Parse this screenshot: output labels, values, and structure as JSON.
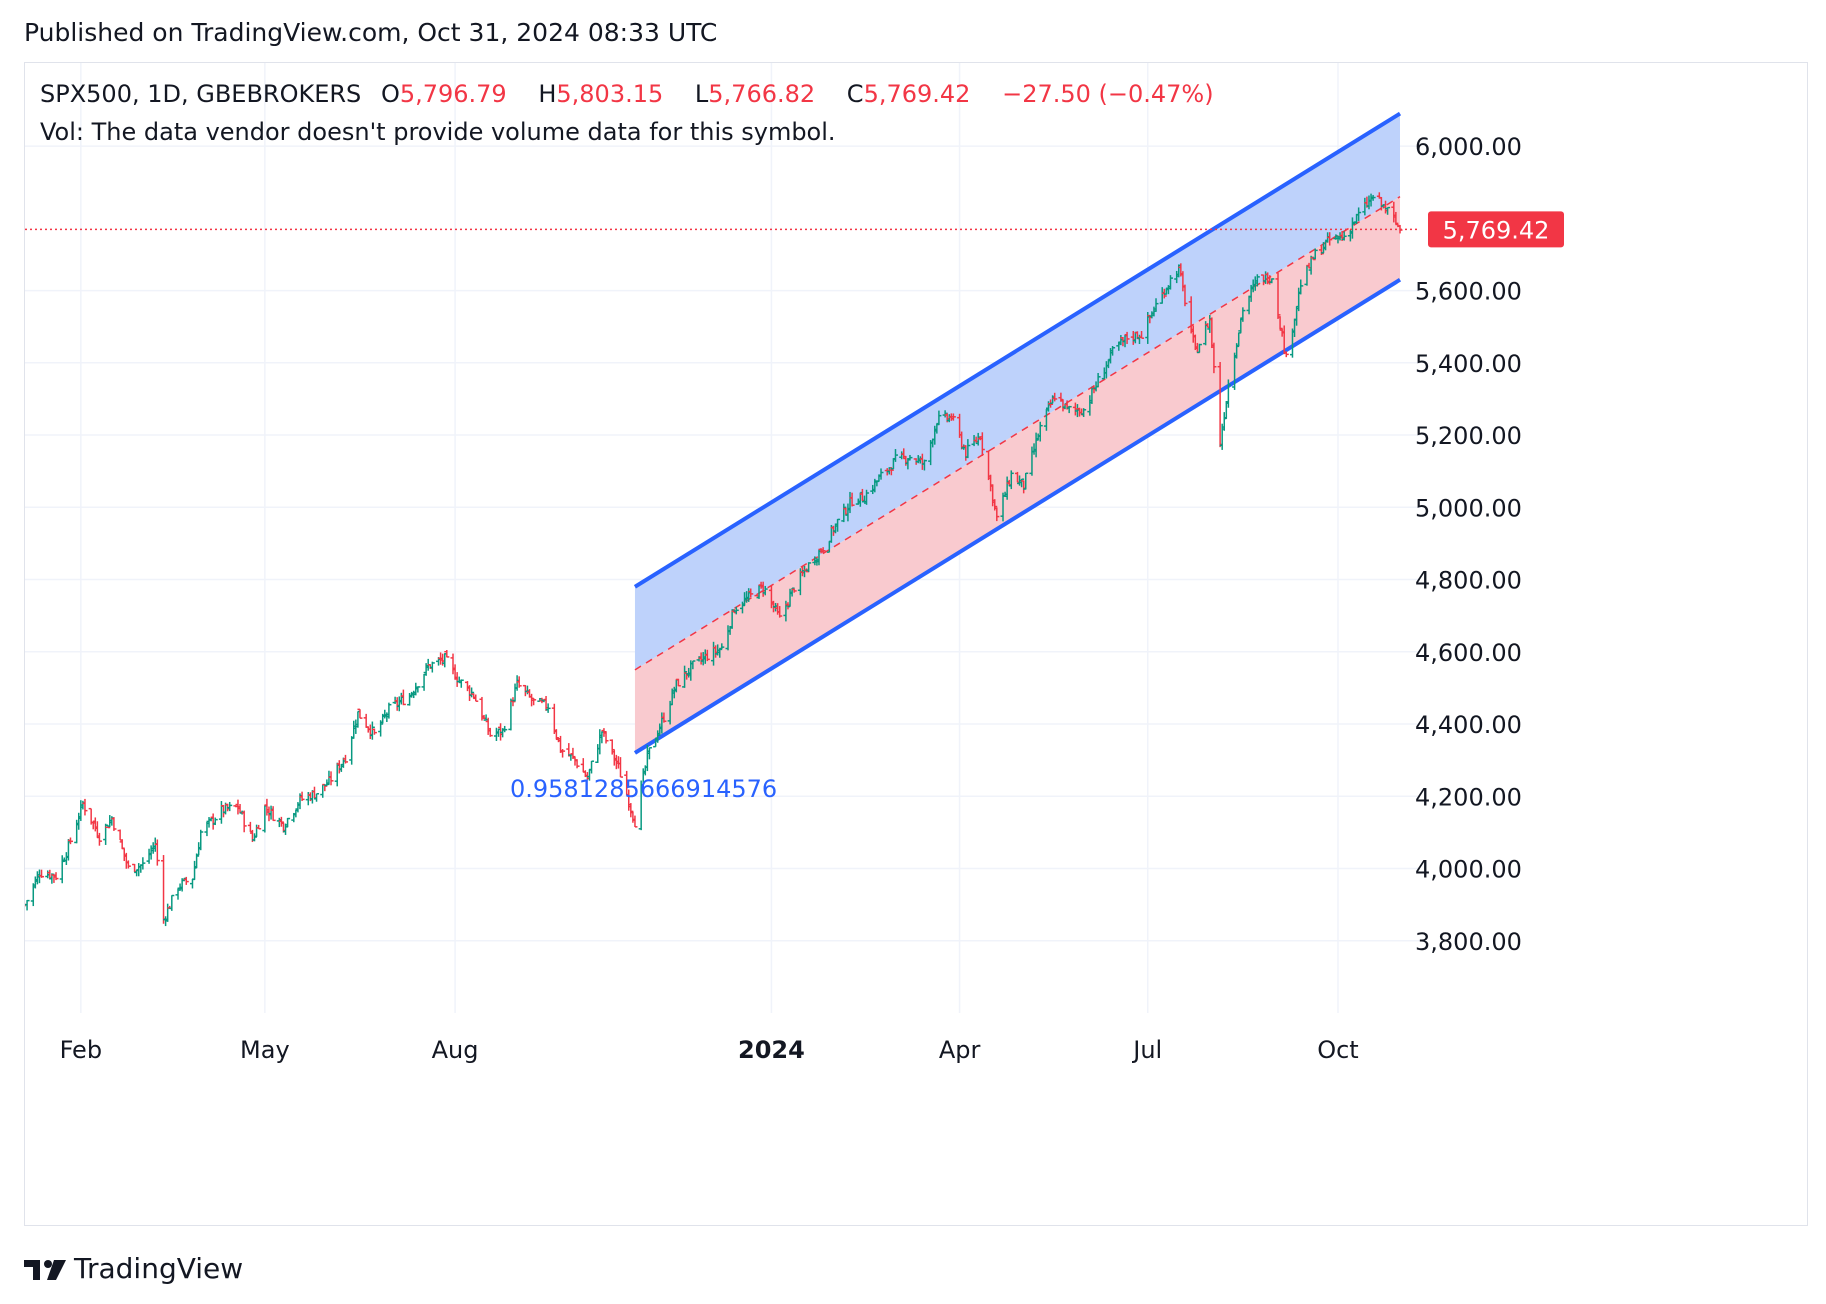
{
  "header": {
    "published": "Published on TradingView.com, Oct 31, 2024 08:33 UTC"
  },
  "legend": {
    "symbol": "SPX500, 1D, GBEBROKERS",
    "o_label": "O",
    "o_value": "5,796.79",
    "h_label": "H",
    "h_value": "5,803.15",
    "l_label": "L",
    "l_value": "5,766.82",
    "c_label": "C",
    "c_value": "5,769.42",
    "change": "−27.50 (−0.47%)",
    "vol_note": "Vol: The data vendor doesn't provide volume data for this symbol."
  },
  "footer": {
    "brand": "TradingView"
  },
  "colors": {
    "up": "#089981",
    "down": "#f23645",
    "channel_line": "#2962ff",
    "upper_fill": "#bbd0fb",
    "lower_fill": "#f9c7cc",
    "mid_line": "#f23645",
    "price_label_bg": "#f23645",
    "annotation": "#2962ff",
    "grid": "#f0f3fa"
  },
  "chart_data": {
    "type": "candlestick",
    "symbol": "SPX500",
    "interval": "1D",
    "source": "GBEBROKERS",
    "y_ticks": [
      "3,800.00",
      "4,000.00",
      "4,200.00",
      "4,400.00",
      "4,600.00",
      "4,800.00",
      "5,000.00",
      "5,200.00",
      "5,400.00",
      "5,600.00",
      "6,000.00"
    ],
    "y_tick_values": [
      3800,
      4000,
      4200,
      4400,
      4600,
      4800,
      5000,
      5200,
      5400,
      5600,
      6000
    ],
    "ylim": [
      3600,
      6230
    ],
    "x_ticks": [
      {
        "label": "Feb",
        "date": "2023-02-01",
        "bold": false
      },
      {
        "label": "May",
        "date": "2023-05-01",
        "bold": false
      },
      {
        "label": "Aug",
        "date": "2023-08-01",
        "bold": false
      },
      {
        "label": "2024",
        "date": "2024-01-01",
        "bold": true
      },
      {
        "label": "Apr",
        "date": "2024-04-01",
        "bold": false
      },
      {
        "label": "Jul",
        "date": "2024-07-01",
        "bold": false
      },
      {
        "label": "Oct",
        "date": "2024-10-01",
        "bold": false
      }
    ],
    "x_range": [
      "2023-01-05",
      "2024-10-31"
    ],
    "close_path": [
      [
        "2023-01-05",
        3900
      ],
      [
        "2023-01-12",
        3990
      ],
      [
        "2023-01-20",
        3980
      ],
      [
        "2023-01-26",
        4060
      ],
      [
        "2023-02-02",
        4180
      ],
      [
        "2023-02-10",
        4090
      ],
      [
        "2023-02-16",
        4140
      ],
      [
        "2023-02-24",
        4000
      ],
      [
        "2023-03-03",
        4010
      ],
      [
        "2023-03-09",
        4070
      ],
      [
        "2023-03-13",
        3860
      ],
      [
        "2023-03-20",
        3950
      ],
      [
        "2023-03-27",
        3975
      ],
      [
        "2023-03-31",
        4100
      ],
      [
        "2023-04-10",
        4160
      ],
      [
        "2023-04-18",
        4170
      ],
      [
        "2023-04-25",
        4080
      ],
      [
        "2023-05-01",
        4170
      ],
      [
        "2023-05-10",
        4120
      ],
      [
        "2023-05-18",
        4190
      ],
      [
        "2023-05-26",
        4210
      ],
      [
        "2023-06-01",
        4240
      ],
      [
        "2023-06-09",
        4310
      ],
      [
        "2023-06-15",
        4430
      ],
      [
        "2023-06-23",
        4370
      ],
      [
        "2023-06-30",
        4440
      ],
      [
        "2023-07-10",
        4480
      ],
      [
        "2023-07-19",
        4560
      ],
      [
        "2023-07-27",
        4580
      ],
      [
        "2023-08-03",
        4520
      ],
      [
        "2023-08-10",
        4480
      ],
      [
        "2023-08-18",
        4370
      ],
      [
        "2023-08-24",
        4380
      ],
      [
        "2023-08-31",
        4510
      ],
      [
        "2023-09-08",
        4460
      ],
      [
        "2023-09-15",
        4450
      ],
      [
        "2023-09-21",
        4330
      ],
      [
        "2023-09-28",
        4300
      ],
      [
        "2023-10-04",
        4250
      ],
      [
        "2023-10-11",
        4380
      ],
      [
        "2023-10-19",
        4280
      ],
      [
        "2023-10-27",
        4130
      ],
      [
        "2023-11-02",
        4310
      ],
      [
        "2023-11-10",
        4420
      ],
      [
        "2023-11-16",
        4510
      ],
      [
        "2023-11-24",
        4560
      ],
      [
        "2023-12-01",
        4590
      ],
      [
        "2023-12-08",
        4610
      ],
      [
        "2023-12-14",
        4720
      ],
      [
        "2023-12-21",
        4750
      ],
      [
        "2023-12-28",
        4780
      ],
      [
        "2024-01-05",
        4690
      ],
      [
        "2024-01-12",
        4780
      ],
      [
        "2024-01-19",
        4840
      ],
      [
        "2024-01-26",
        4890
      ],
      [
        "2024-02-02",
        4960
      ],
      [
        "2024-02-09",
        5020
      ],
      [
        "2024-02-15",
        5030
      ],
      [
        "2024-02-22",
        5080
      ],
      [
        "2024-03-01",
        5130
      ],
      [
        "2024-03-08",
        5140
      ],
      [
        "2024-03-15",
        5120
      ],
      [
        "2024-03-21",
        5240
      ],
      [
        "2024-03-28",
        5250
      ],
      [
        "2024-04-04",
        5150
      ],
      [
        "2024-04-11",
        5200
      ],
      [
        "2024-04-19",
        4970
      ],
      [
        "2024-04-26",
        5090
      ],
      [
        "2024-05-02",
        5060
      ],
      [
        "2024-05-10",
        5220
      ],
      [
        "2024-05-17",
        5310
      ],
      [
        "2024-05-23",
        5270
      ],
      [
        "2024-05-31",
        5270
      ],
      [
        "2024-06-07",
        5350
      ],
      [
        "2024-06-14",
        5430
      ],
      [
        "2024-06-21",
        5470
      ],
      [
        "2024-06-28",
        5480
      ],
      [
        "2024-07-05",
        5560
      ],
      [
        "2024-07-12",
        5630
      ],
      [
        "2024-07-16",
        5660
      ],
      [
        "2024-07-24",
        5430
      ],
      [
        "2024-07-31",
        5520
      ],
      [
        "2024-08-05",
        5180
      ],
      [
        "2024-08-09",
        5340
      ],
      [
        "2024-08-16",
        5550
      ],
      [
        "2024-08-23",
        5630
      ],
      [
        "2024-08-30",
        5640
      ],
      [
        "2024-09-06",
        5410
      ],
      [
        "2024-09-13",
        5620
      ],
      [
        "2024-09-20",
        5700
      ],
      [
        "2024-09-27",
        5740
      ],
      [
        "2024-10-04",
        5750
      ],
      [
        "2024-10-11",
        5810
      ],
      [
        "2024-10-18",
        5860
      ],
      [
        "2024-10-25",
        5820
      ],
      [
        "2024-10-31",
        5769.42
      ]
    ],
    "regression_channel": {
      "start_date": "2023-10-27",
      "end_date": "2024-10-31",
      "upper": [
        4780,
        6090
      ],
      "mid": [
        4550,
        5860
      ],
      "lower": [
        4320,
        5630
      ],
      "annotation": "0.9581285666914576"
    },
    "last_price": {
      "value": 5769.42,
      "label": "5,769.42"
    }
  }
}
